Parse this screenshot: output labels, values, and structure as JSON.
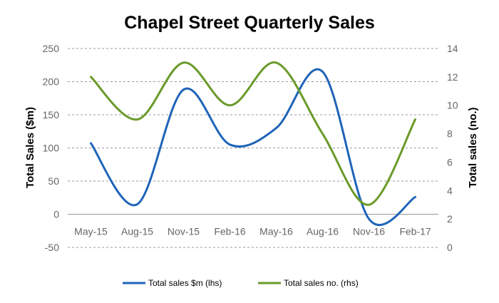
{
  "chart_data": {
    "type": "line",
    "title": "Chapel Street Quarterly Sales",
    "categories": [
      "May-15",
      "Aug-15",
      "Nov-15",
      "Feb-16",
      "May-16",
      "Aug-16",
      "Nov-16",
      "Feb-17"
    ],
    "ylabel_left": "Total Sales ($m)",
    "ylabel_right": "Total sales (no.)",
    "ylim_left": [
      -50,
      250
    ],
    "ylim_right": [
      0,
      14
    ],
    "yticks_left": [
      "-50",
      "0",
      "50",
      "100",
      "150",
      "200",
      "250"
    ],
    "yticks_right": [
      "0",
      "2",
      "4",
      "6",
      "8",
      "10",
      "12",
      "14"
    ],
    "grid": true,
    "legend_position": "bottom",
    "series": [
      {
        "name": "Total sales $m (lhs)",
        "axis": "left",
        "color": "#1f64b8",
        "values": [
          107,
          15,
          188,
          105,
          130,
          215,
          -7,
          26
        ]
      },
      {
        "name": "Total sales no. (rhs)",
        "axis": "right",
        "color": "#6a9a2a",
        "values": [
          12,
          9,
          13,
          10,
          13,
          8,
          3,
          9
        ]
      }
    ]
  }
}
